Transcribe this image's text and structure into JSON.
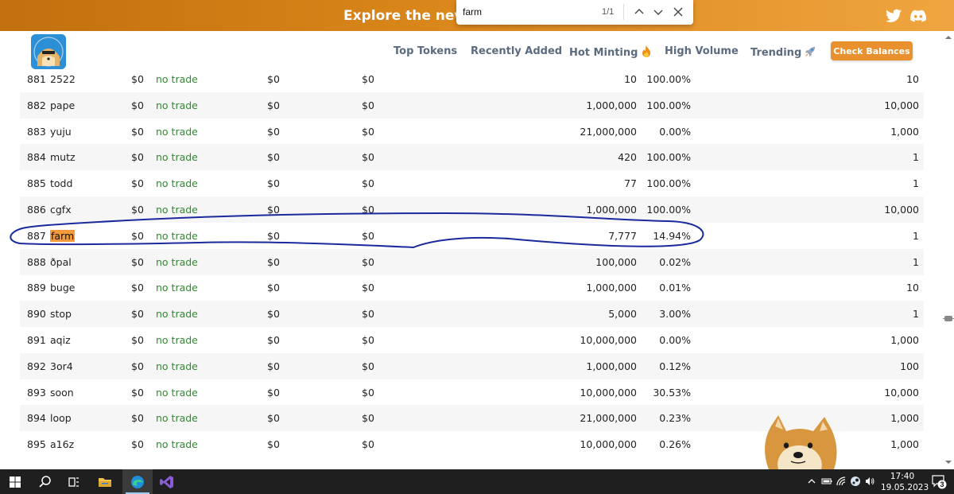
{
  "banner": {
    "text": "Explore the new dr"
  },
  "find_bar": {
    "query": "farm",
    "count": "1/1"
  },
  "nav": {
    "top_tokens": "Top Tokens",
    "recently_added": "Recently Added",
    "hot_minting": "Hot Minting",
    "high_volume": "High Volume",
    "trending": "Trending",
    "check_balances": "Check Balances"
  },
  "table": {
    "highlight_name": "farm",
    "rows": [
      {
        "idx": "881",
        "name": "2522",
        "price": "$0",
        "trade": "no trade",
        "v1": "$0",
        "v2": "$0",
        "supply": "10",
        "pct": "100.00%",
        "holders": "10"
      },
      {
        "idx": "882",
        "name": "pape",
        "price": "$0",
        "trade": "no trade",
        "v1": "$0",
        "v2": "$0",
        "supply": "1,000,000",
        "pct": "100.00%",
        "holders": "10,000"
      },
      {
        "idx": "883",
        "name": "yuju",
        "price": "$0",
        "trade": "no trade",
        "v1": "$0",
        "v2": "$0",
        "supply": "21,000,000",
        "pct": "0.00%",
        "holders": "1,000"
      },
      {
        "idx": "884",
        "name": "mutz",
        "price": "$0",
        "trade": "no trade",
        "v1": "$0",
        "v2": "$0",
        "supply": "420",
        "pct": "100.00%",
        "holders": "1"
      },
      {
        "idx": "885",
        "name": "todd",
        "price": "$0",
        "trade": "no trade",
        "v1": "$0",
        "v2": "$0",
        "supply": "77",
        "pct": "100.00%",
        "holders": "1"
      },
      {
        "idx": "886",
        "name": "cgfx",
        "price": "$0",
        "trade": "no trade",
        "v1": "$0",
        "v2": "$0",
        "supply": "1,000,000",
        "pct": "100.00%",
        "holders": "10,000"
      },
      {
        "idx": "887",
        "name": "farm",
        "price": "$0",
        "trade": "no trade",
        "v1": "$0",
        "v2": "$0",
        "supply": "7,777",
        "pct": "14.94%",
        "holders": "1"
      },
      {
        "idx": "888",
        "name": "ðpal",
        "price": "$0",
        "trade": "no trade",
        "v1": "$0",
        "v2": "$0",
        "supply": "100,000",
        "pct": "0.02%",
        "holders": "1"
      },
      {
        "idx": "889",
        "name": "buge",
        "price": "$0",
        "trade": "no trade",
        "v1": "$0",
        "v2": "$0",
        "supply": "1,000,000",
        "pct": "0.01%",
        "holders": "10"
      },
      {
        "idx": "890",
        "name": "stop",
        "price": "$0",
        "trade": "no trade",
        "v1": "$0",
        "v2": "$0",
        "supply": "5,000",
        "pct": "3.00%",
        "holders": "1"
      },
      {
        "idx": "891",
        "name": "aqiz",
        "price": "$0",
        "trade": "no trade",
        "v1": "$0",
        "v2": "$0",
        "supply": "10,000,000",
        "pct": "0.00%",
        "holders": "1,000"
      },
      {
        "idx": "892",
        "name": "3or4",
        "price": "$0",
        "trade": "no trade",
        "v1": "$0",
        "v2": "$0",
        "supply": "1,000,000",
        "pct": "0.12%",
        "holders": "100"
      },
      {
        "idx": "893",
        "name": "soon",
        "price": "$0",
        "trade": "no trade",
        "v1": "$0",
        "v2": "$0",
        "supply": "10,000,000",
        "pct": "30.53%",
        "holders": "10,000"
      },
      {
        "idx": "894",
        "name": "loop",
        "price": "$0",
        "trade": "no trade",
        "v1": "$0",
        "v2": "$0",
        "supply": "21,000,000",
        "pct": "0.23%",
        "holders": "1,000"
      },
      {
        "idx": "895",
        "name": "a16z",
        "price": "$0",
        "trade": "no trade",
        "v1": "$0",
        "v2": "$0",
        "supply": "10,000,000",
        "pct": "0.26%",
        "holders": "1,000"
      }
    ]
  },
  "taskbar": {
    "time": "17:40",
    "date": "19.05.2023",
    "notifications": "3"
  },
  "colors": {
    "accent": "#e8912e",
    "banner_start": "#c2700e",
    "banner_end": "#f0a540",
    "trade_green": "#2e8b2e",
    "annotation_blue": "#1a2a9e",
    "find_highlight": "#f59a3a"
  },
  "icons": {
    "social": [
      "twitter-icon",
      "discord-icon"
    ],
    "find": [
      "chevron-up-icon",
      "chevron-down-icon",
      "close-icon"
    ],
    "nav": [
      "fire-icon",
      "rocket-icon"
    ],
    "taskbar": [
      "windows-start-icon",
      "search-icon",
      "task-view-icon",
      "file-explorer-icon",
      "edge-browser-icon",
      "visual-studio-icon"
    ]
  }
}
